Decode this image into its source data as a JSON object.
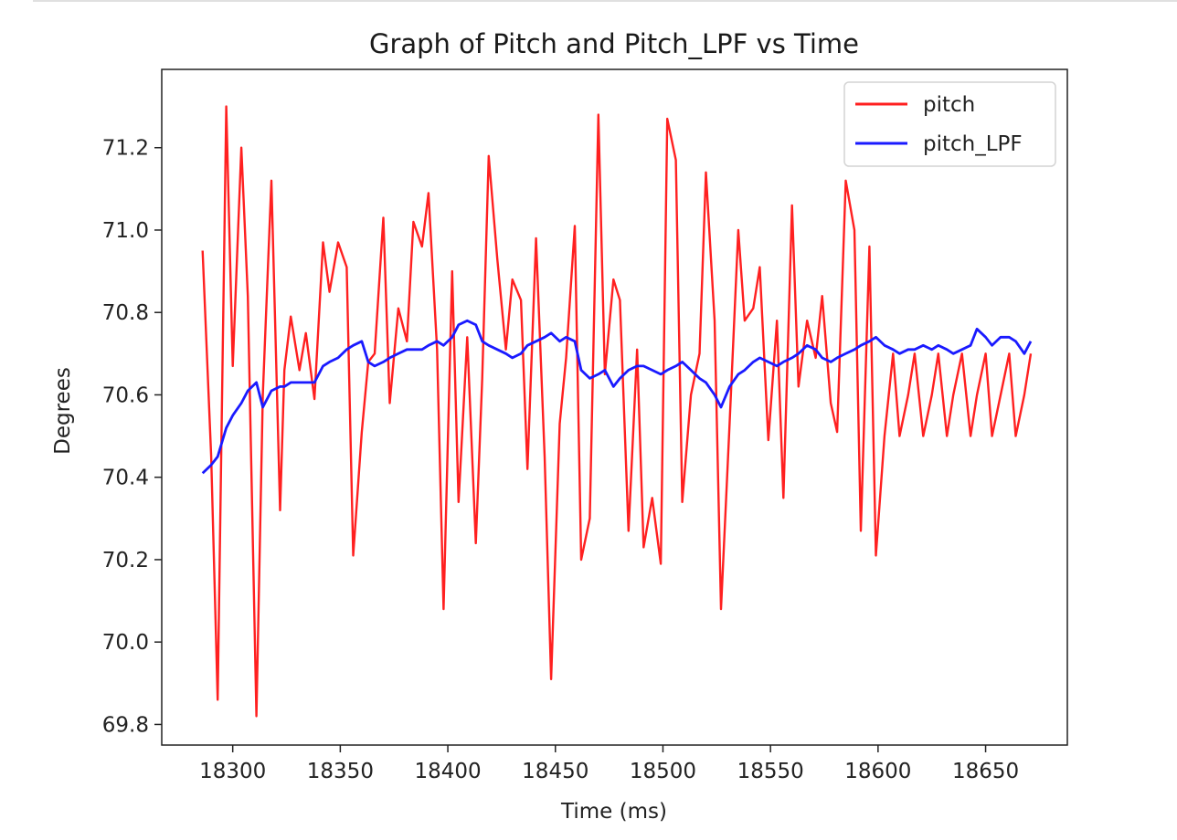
{
  "chart_data": {
    "type": "line",
    "title": "Graph of Pitch and Pitch_LPF vs Time",
    "xlabel": "Time (ms)",
    "ylabel": "Degrees",
    "xlim": [
      18267,
      18688
    ],
    "ylim": [
      69.75,
      71.39
    ],
    "xticks": [
      18300,
      18350,
      18400,
      18450,
      18500,
      18550,
      18600,
      18650
    ],
    "yticks": [
      69.8,
      70.0,
      70.2,
      70.4,
      70.6,
      70.8,
      71.0,
      71.2
    ],
    "ytick_labels": [
      "69.8",
      "70.0",
      "70.2",
      "70.4",
      "70.6",
      "70.8",
      "71.0",
      "71.2"
    ],
    "grid": false,
    "legend_position": "top-right",
    "series": [
      {
        "name": "pitch",
        "color": "#ff2020",
        "x": [
          18286,
          18290,
          18293,
          18297,
          18300,
          18304,
          18307,
          18311,
          18314,
          18318,
          18322,
          18324,
          18327,
          18331,
          18334,
          18338,
          18342,
          18345,
          18349,
          18353,
          18356,
          18360,
          18363,
          18366,
          18370,
          18373,
          18377,
          18381,
          18384,
          18388,
          18391,
          18395,
          18398,
          18402,
          18405,
          18409,
          18413,
          18416,
          18419,
          18423,
          18427,
          18430,
          18434,
          18437,
          18441,
          18445,
          18448,
          18452,
          18455,
          18459,
          18462,
          18466,
          18470,
          18473,
          18477,
          18480,
          18484,
          18488,
          18491,
          18495,
          18499,
          18502,
          18506,
          18509,
          18513,
          18517,
          18520,
          18524,
          18527,
          18531,
          18535,
          18538,
          18542,
          18545,
          18549,
          18553,
          18556,
          18560,
          18563,
          18567,
          18571,
          18574,
          18578,
          18581,
          18585,
          18589,
          18592,
          18596,
          18599,
          18603,
          18607,
          18610,
          18614,
          18617,
          18621,
          18625,
          18628,
          18632,
          18635,
          18639,
          18643,
          18646,
          18650,
          18653,
          18657,
          18661,
          18664,
          18668,
          18671
        ],
        "y": [
          70.95,
          70.45,
          69.86,
          71.3,
          70.67,
          71.2,
          70.84,
          69.82,
          70.6,
          71.12,
          70.32,
          70.66,
          70.79,
          70.66,
          70.75,
          70.59,
          70.97,
          70.85,
          70.97,
          70.91,
          70.21,
          70.51,
          70.68,
          70.7,
          71.03,
          70.58,
          70.81,
          70.73,
          71.02,
          70.96,
          71.09,
          70.71,
          70.08,
          70.9,
          70.34,
          70.74,
          70.24,
          70.64,
          71.18,
          70.93,
          70.71,
          70.88,
          70.83,
          70.42,
          70.98,
          70.45,
          69.91,
          70.53,
          70.69,
          71.01,
          70.2,
          70.3,
          71.28,
          70.65,
          70.88,
          70.83,
          70.27,
          70.71,
          70.23,
          70.35,
          70.19,
          71.27,
          71.17,
          70.34,
          70.6,
          70.7,
          71.14,
          70.78,
          70.08,
          70.53,
          71.0,
          70.78,
          70.81,
          70.91,
          70.49,
          70.78,
          70.35,
          71.06,
          70.62,
          70.78,
          70.69,
          70.84,
          70.58,
          70.51,
          71.12,
          71.0,
          70.27,
          70.96,
          70.21,
          70.5,
          70.7,
          70.5,
          70.6,
          70.7,
          70.5,
          70.6,
          70.7,
          70.5,
          70.6,
          70.7,
          70.5,
          70.6,
          70.7,
          70.5,
          70.6,
          70.7,
          70.5,
          70.6,
          70.7
        ]
      },
      {
        "name": "pitch_LPF",
        "color": "#1a1aff",
        "x": [
          18286,
          18290,
          18293,
          18297,
          18300,
          18304,
          18307,
          18311,
          18314,
          18318,
          18322,
          18324,
          18327,
          18331,
          18334,
          18338,
          18342,
          18345,
          18349,
          18353,
          18356,
          18360,
          18363,
          18366,
          18370,
          18373,
          18377,
          18381,
          18384,
          18388,
          18391,
          18395,
          18398,
          18402,
          18405,
          18409,
          18413,
          18416,
          18419,
          18423,
          18427,
          18430,
          18434,
          18437,
          18441,
          18445,
          18448,
          18452,
          18455,
          18459,
          18462,
          18466,
          18470,
          18473,
          18477,
          18480,
          18484,
          18488,
          18491,
          18495,
          18499,
          18502,
          18506,
          18509,
          18513,
          18517,
          18520,
          18524,
          18527,
          18531,
          18535,
          18538,
          18542,
          18545,
          18549,
          18553,
          18556,
          18560,
          18563,
          18567,
          18571,
          18574,
          18578,
          18581,
          18585,
          18589,
          18592,
          18596,
          18599,
          18603,
          18607,
          18610,
          18614,
          18617,
          18621,
          18625,
          18628,
          18632,
          18635,
          18639,
          18643,
          18646,
          18650,
          18653,
          18657,
          18661,
          18664,
          18668,
          18671
        ],
        "y": [
          70.41,
          70.43,
          70.45,
          70.52,
          70.55,
          70.58,
          70.61,
          70.63,
          70.57,
          70.61,
          70.62,
          70.62,
          70.63,
          70.63,
          70.63,
          70.63,
          70.67,
          70.68,
          70.69,
          70.71,
          70.72,
          70.73,
          70.68,
          70.67,
          70.68,
          70.69,
          70.7,
          70.71,
          70.71,
          70.71,
          70.72,
          70.73,
          70.72,
          70.74,
          70.77,
          70.78,
          70.77,
          70.73,
          70.72,
          70.71,
          70.7,
          70.69,
          70.7,
          70.72,
          70.73,
          70.74,
          70.75,
          70.73,
          70.74,
          70.73,
          70.66,
          70.64,
          70.65,
          70.66,
          70.62,
          70.64,
          70.66,
          70.67,
          70.67,
          70.66,
          70.65,
          70.66,
          70.67,
          70.68,
          70.66,
          70.64,
          70.63,
          70.6,
          70.57,
          70.62,
          70.65,
          70.66,
          70.68,
          70.69,
          70.68,
          70.67,
          70.68,
          70.69,
          70.7,
          70.72,
          70.71,
          70.69,
          70.68,
          70.69,
          70.7,
          70.71,
          70.72,
          70.73,
          70.74,
          70.72,
          70.71,
          70.7,
          70.71,
          70.71,
          70.72,
          70.71,
          70.72,
          70.71,
          70.7,
          70.71,
          70.72,
          70.76,
          70.74,
          70.72,
          70.74,
          70.74,
          70.73,
          70.7,
          70.73
        ]
      }
    ]
  }
}
